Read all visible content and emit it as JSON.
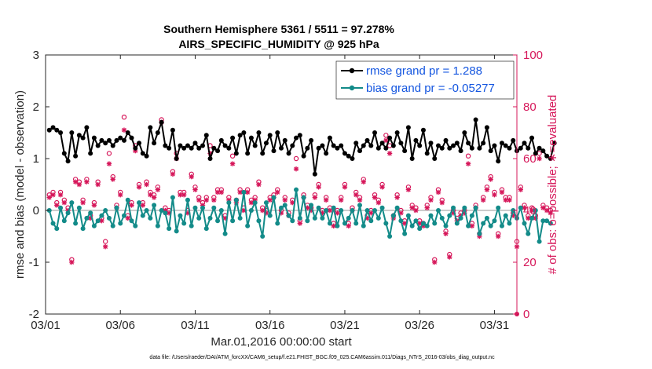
{
  "chart_data": {
    "type": "line",
    "title": "Southern Hemisphere 5361 / 5511 = 97.278%",
    "subtitle": "AIRS_SPECIFIC_HUMIDITY @ 925 hPa",
    "xlabel": "Mar.01,2016 00:00:00 start",
    "ylabel": "rmse and bias (model - observation)",
    "ylabel_right": "# of obs: o=possible; ∗=evaluated",
    "footnote": "data file: /Users/raeder/DAI/ATM_forcXX/CAM6_setup/f.e21.FHIST_BGC.f09_025.CAM6assim.011/Diags_NTrS_2016-03/obs_diag_output.nc",
    "xlim": [
      0,
      31.5
    ],
    "ylim": [
      -2,
      3
    ],
    "ylim_right": [
      0,
      100
    ],
    "x_ticks": [
      0,
      5,
      10,
      15,
      20,
      25,
      30
    ],
    "x_tick_labels": [
      "03/01",
      "03/06",
      "03/11",
      "03/16",
      "03/21",
      "03/26",
      "03/31"
    ],
    "y_ticks": [
      -2,
      -1,
      0,
      1,
      2,
      3
    ],
    "y_tick_labels": [
      "-2",
      "-1",
      "0",
      "1",
      "2",
      "3"
    ],
    "y_right_ticks": [
      0,
      20,
      40,
      60,
      80,
      100
    ],
    "y_right_tick_labels": [
      "0",
      "20",
      "40",
      "60",
      "80",
      "100"
    ],
    "x_step_days": 0.25,
    "zero_line": 0,
    "legend": [
      {
        "label": "rmse grand pr = 1.288",
        "color": "#000000"
      },
      {
        "label": "bias grand pr = -0.05277",
        "color": "#138b89"
      }
    ],
    "colors": {
      "rmse": "#000000",
      "bias": "#138b89",
      "counts": "#d6175a",
      "zero": "#bbbbbb",
      "axis": "#262626"
    },
    "series": [
      {
        "name": "rmse",
        "values": [
          1.55,
          1.6,
          1.55,
          1.5,
          1.1,
          0.95,
          1.5,
          1.05,
          1.45,
          1.4,
          1.6,
          1.1,
          1.4,
          1.25,
          1.35,
          1.3,
          1.35,
          1.25,
          1.35,
          1.4,
          1.35,
          1.5,
          1.4,
          1.2,
          1.3,
          1.1,
          1.05,
          1.6,
          1.3,
          1.5,
          1.7,
          1.25,
          1.2,
          1.55,
          1.0,
          1.25,
          1.2,
          1.25,
          1.2,
          1.3,
          1.2,
          1.25,
          1.45,
          1.0,
          1.2,
          1.15,
          1.35,
          1.25,
          1.2,
          1.4,
          1.1,
          1.45,
          1.5,
          1.1,
          1.4,
          1.25,
          1.5,
          1.1,
          1.3,
          1.45,
          1.15,
          1.5,
          1.2,
          1.35,
          1.1,
          1.25,
          1.4,
          1.45,
          1.05,
          1.2,
          1.35,
          0.7,
          1.2,
          1.25,
          1.1,
          1.4,
          1.25,
          1.2,
          1.25,
          1.1,
          1.05,
          1.0,
          1.3,
          1.15,
          1.25,
          1.35,
          1.25,
          1.5,
          1.2,
          1.3,
          1.2,
          1.4,
          1.25,
          1.5,
          1.3,
          1.15,
          1.6,
          1.0,
          1.35,
          1.25,
          1.55,
          1.1,
          1.3,
          1.0,
          1.25,
          1.2,
          1.35,
          1.2,
          1.25,
          1.3,
          1.15,
          1.5,
          1.3,
          1.2,
          1.75,
          1.2,
          1.3,
          1.6,
          1.15,
          1.25,
          0.95,
          1.3,
          1.25,
          1.2,
          1.35,
          1.15,
          1.2,
          1.3,
          1.2,
          1.4,
          1.1,
          1.2,
          1.15,
          1.05,
          1.0,
          1.3
        ]
      },
      {
        "name": "bias",
        "values": [
          0.0,
          -0.25,
          -0.35,
          0.05,
          -0.2,
          -0.05,
          0.15,
          -0.25,
          0.05,
          -0.35,
          -0.15,
          -0.05,
          -0.3,
          -0.2,
          -0.1,
          0.0,
          -0.15,
          -0.3,
          0.05,
          -0.25,
          -0.1,
          0.2,
          -0.2,
          -0.3,
          0.15,
          -0.1,
          0.0,
          -0.15,
          0.1,
          -0.3,
          0.0,
          -0.05,
          -0.35,
          0.25,
          -0.4,
          -0.1,
          -0.25,
          0.2,
          -0.3,
          0.05,
          -0.15,
          0.05,
          -0.35,
          -0.15,
          0.05,
          -0.2,
          0.0,
          -0.45,
          0.15,
          -0.2,
          0.2,
          -0.15,
          0.35,
          -0.3,
          0.0,
          0.15,
          -0.2,
          -0.5,
          0.15,
          -0.1,
          0.25,
          -0.25,
          0.05,
          0.1,
          -0.1,
          -0.2,
          0.4,
          -0.15,
          0.25,
          -0.2,
          0.1,
          -0.15,
          0.05,
          -0.15,
          0.0,
          -0.25,
          0.05,
          -0.3,
          0.0,
          -0.25,
          -0.15,
          0.0,
          -0.25,
          0.1,
          -0.3,
          0.0,
          -0.2,
          0.0,
          -0.15,
          0.05,
          -0.25,
          -0.5,
          -0.1,
          0.05,
          -0.2,
          -0.45,
          -0.1,
          -0.3,
          -0.2,
          -0.35,
          -0.25,
          -0.3,
          -0.1,
          -0.25,
          0.0,
          -0.15,
          -0.3,
          -0.1,
          0.05,
          -0.25,
          -0.15,
          0.05,
          -0.3,
          -0.1,
          0.05,
          -0.45,
          -0.25,
          -0.15,
          -0.3,
          -0.2,
          0.05,
          -0.3,
          -0.1,
          -0.25,
          0.0,
          -0.15,
          0.05,
          -0.25,
          -0.45,
          -0.15,
          0.0,
          -0.6,
          -0.2,
          -0.2,
          -0.25
        ]
      },
      {
        "name": "obs_possible",
        "axis": "right",
        "values": [
          46,
          47,
          43,
          47,
          44,
          41,
          21,
          52,
          51,
          44,
          52,
          38,
          43,
          51,
          37,
          28,
          62,
          53,
          42,
          47,
          76,
          38,
          43,
          65,
          50,
          43,
          51,
          47,
          46,
          49,
          75,
          41,
          40,
          55,
          62,
          47,
          47,
          40,
          54,
          49,
          45,
          43,
          45,
          65,
          45,
          48,
          48,
          38,
          45,
          61,
          44,
          48,
          41,
          48,
          44,
          45,
          51,
          41,
          40,
          45,
          46,
          48,
          40,
          45,
          39,
          44,
          60,
          36,
          46,
          42,
          41,
          46,
          50,
          40,
          45,
          41,
          35,
          40,
          45,
          50,
          35,
          41,
          47,
          45,
          52,
          38,
          40,
          46,
          44,
          50,
          69,
          65,
          38,
          46,
          40,
          36,
          49,
          42,
          41,
          36,
          35,
          42,
          45,
          21,
          48,
          44,
          32,
          23,
          40,
          37,
          39,
          40,
          61,
          35,
          42,
          31,
          45,
          49,
          53,
          47,
          31,
          48,
          45,
          45,
          39,
          28,
          49,
          42,
          38,
          41,
          38,
          62,
          42,
          41,
          40
        ]
      },
      {
        "name": "obs_evaluated",
        "axis": "right",
        "values": [
          45,
          46,
          42,
          46,
          43,
          40,
          20,
          51,
          50,
          43,
          51,
          37,
          42,
          50,
          36,
          26,
          58,
          52,
          41,
          46,
          71,
          37,
          42,
          63,
          49,
          42,
          50,
          46,
          45,
          48,
          74,
          40,
          39,
          54,
          60,
          46,
          46,
          39,
          53,
          48,
          44,
          42,
          44,
          62,
          44,
          47,
          47,
          37,
          44,
          58,
          43,
          47,
          40,
          47,
          43,
          44,
          50,
          40,
          39,
          44,
          45,
          47,
          39,
          44,
          38,
          43,
          56,
          35,
          45,
          41,
          40,
          45,
          49,
          39,
          44,
          40,
          34,
          39,
          44,
          49,
          34,
          40,
          46,
          44,
          51,
          37,
          39,
          45,
          43,
          49,
          67,
          62,
          37,
          45,
          39,
          35,
          48,
          41,
          40,
          35,
          34,
          41,
          44,
          20,
          47,
          43,
          31,
          22,
          39,
          36,
          38,
          39,
          58,
          34,
          41,
          30,
          44,
          48,
          52,
          46,
          30,
          47,
          44,
          44,
          38,
          26,
          48,
          41,
          37,
          40,
          37,
          60,
          41,
          40,
          39
        ]
      }
    ]
  }
}
